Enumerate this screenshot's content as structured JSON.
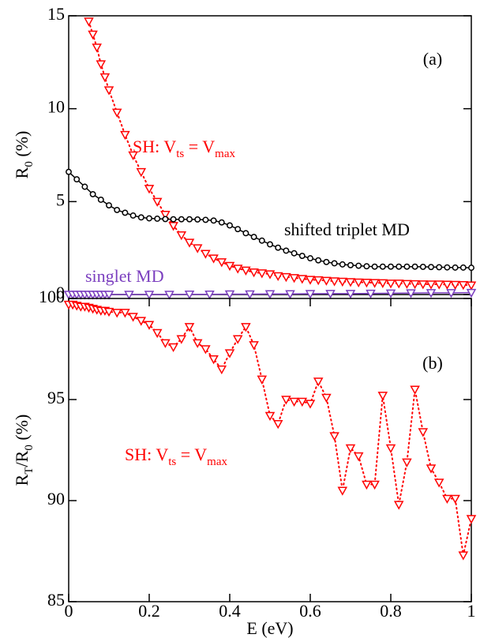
{
  "chart_data": [
    {
      "type": "line",
      "annotation": "(a)",
      "ylabel_parts": [
        "R",
        "0",
        " (%)"
      ],
      "xlim": [
        0,
        1
      ],
      "ylim": [
        0,
        15
      ],
      "yticks": [
        0,
        5,
        10,
        15
      ],
      "series": [
        {
          "name_parts": [
            "SH: V",
            "ts",
            " = V",
            "max"
          ],
          "color": "#ff0000",
          "marker": "triangle-down",
          "linestyle": "dotted",
          "x": [
            0.05,
            0.06,
            0.07,
            0.08,
            0.09,
            0.1,
            0.12,
            0.14,
            0.16,
            0.18,
            0.2,
            0.22,
            0.24,
            0.26,
            0.28,
            0.3,
            0.32,
            0.34,
            0.36,
            0.38,
            0.4,
            0.42,
            0.44,
            0.46,
            0.48,
            0.5,
            0.52,
            0.54,
            0.56,
            0.58,
            0.6,
            0.62,
            0.64,
            0.66,
            0.68,
            0.7,
            0.72,
            0.74,
            0.76,
            0.78,
            0.8,
            0.82,
            0.84,
            0.86,
            0.88,
            0.9,
            0.92,
            0.94,
            0.96,
            0.98,
            1
          ],
          "values": [
            14.7,
            14.0,
            13.3,
            12.4,
            11.7,
            11.0,
            9.8,
            8.6,
            7.5,
            6.6,
            5.7,
            5.0,
            4.3,
            3.7,
            3.2,
            2.8,
            2.5,
            2.2,
            1.95,
            1.75,
            1.55,
            1.4,
            1.3,
            1.2,
            1.15,
            1.1,
            1.0,
            0.95,
            0.9,
            0.85,
            0.8,
            0.78,
            0.75,
            0.72,
            0.7,
            0.68,
            0.66,
            0.65,
            0.63,
            0.62,
            0.6,
            0.6,
            0.58,
            0.57,
            0.56,
            0.55,
            0.55,
            0.54,
            0.53,
            0.52,
            0.5
          ]
        },
        {
          "name": "shifted triplet MD",
          "color": "#000000",
          "marker": "circle",
          "linestyle": "solid",
          "x": [
            0,
            0.02,
            0.04,
            0.06,
            0.08,
            0.1,
            0.12,
            0.14,
            0.16,
            0.18,
            0.2,
            0.22,
            0.24,
            0.26,
            0.28,
            0.3,
            0.32,
            0.34,
            0.36,
            0.38,
            0.4,
            0.42,
            0.44,
            0.46,
            0.48,
            0.5,
            0.52,
            0.54,
            0.56,
            0.58,
            0.6,
            0.62,
            0.64,
            0.66,
            0.68,
            0.7,
            0.72,
            0.74,
            0.76,
            0.78,
            0.8,
            0.82,
            0.84,
            0.86,
            0.88,
            0.9,
            0.92,
            0.94,
            0.96,
            0.98,
            1
          ],
          "values": [
            6.6,
            6.2,
            5.8,
            5.4,
            5.1,
            4.8,
            4.55,
            4.4,
            4.25,
            4.15,
            4.1,
            4.08,
            4.06,
            4.05,
            4.05,
            4.05,
            4.04,
            4.02,
            3.98,
            3.88,
            3.72,
            3.52,
            3.3,
            3.1,
            2.9,
            2.7,
            2.52,
            2.36,
            2.22,
            2.08,
            1.95,
            1.84,
            1.75,
            1.68,
            1.62,
            1.58,
            1.55,
            1.52,
            1.5,
            1.5,
            1.5,
            1.5,
            1.5,
            1.5,
            1.49,
            1.48,
            1.47,
            1.46,
            1.45,
            1.45,
            1.44
          ]
        },
        {
          "name": "singlet MD",
          "color": "#7b3fbf",
          "marker": "triangle-down",
          "linestyle": "solid",
          "x": [
            0,
            0.01,
            0.02,
            0.03,
            0.04,
            0.05,
            0.06,
            0.07,
            0.08,
            0.09,
            0.1,
            0.15,
            0.2,
            0.25,
            0.3,
            0.35,
            0.4,
            0.45,
            0.5,
            0.55,
            0.6,
            0.65,
            0.7,
            0.75,
            0.8,
            0.85,
            0.9,
            0.95,
            1
          ],
          "values": [
            0,
            0,
            0,
            0,
            0,
            0,
            0,
            0,
            0,
            0,
            0,
            0,
            0,
            0,
            0.01,
            0.01,
            0.02,
            0.02,
            0.03,
            0.03,
            0.04,
            0.05,
            0.05,
            0.06,
            0.07,
            0.08,
            0.09,
            0.09,
            0.1
          ]
        }
      ]
    },
    {
      "type": "line",
      "annotation": "(b)",
      "ylabel_parts": [
        "R",
        "T",
        "/R",
        "0",
        " (%)"
      ],
      "xlabel": "E (eV)",
      "xlim": [
        0,
        1
      ],
      "xticks": [
        0,
        0.2,
        0.4,
        0.6,
        0.8,
        1
      ],
      "ylim": [
        85,
        100
      ],
      "yticks": [
        85,
        90,
        95,
        100
      ],
      "series": [
        {
          "name_parts": [
            "SH: V",
            "ts",
            " = V",
            "max"
          ],
          "color": "#ff0000",
          "marker": "triangle-down",
          "linestyle": "dotted",
          "x": [
            0,
            0.01,
            0.02,
            0.03,
            0.04,
            0.05,
            0.06,
            0.07,
            0.08,
            0.09,
            0.1,
            0.12,
            0.14,
            0.16,
            0.18,
            0.2,
            0.22,
            0.24,
            0.26,
            0.28,
            0.3,
            0.32,
            0.34,
            0.36,
            0.38,
            0.4,
            0.42,
            0.44,
            0.46,
            0.48,
            0.5,
            0.52,
            0.54,
            0.56,
            0.58,
            0.6,
            0.62,
            0.64,
            0.66,
            0.68,
            0.7,
            0.72,
            0.74,
            0.76,
            0.78,
            0.8,
            0.82,
            0.84,
            0.86,
            0.88,
            0.9,
            0.92,
            0.94,
            0.96,
            0.98,
            1
          ],
          "values": [
            99.7,
            99.7,
            99.65,
            99.6,
            99.6,
            99.55,
            99.5,
            99.45,
            99.4,
            99.4,
            99.35,
            99.3,
            99.3,
            99.1,
            98.9,
            98.7,
            98.3,
            97.8,
            97.6,
            98.0,
            98.6,
            97.8,
            97.5,
            97.0,
            96.5,
            97.3,
            98.0,
            98.6,
            97.7,
            96.0,
            94.2,
            93.8,
            95.0,
            94.9,
            94.9,
            94.8,
            95.9,
            95.1,
            93.2,
            90.5,
            92.6,
            92.2,
            90.8,
            90.8,
            95.2,
            92.6,
            89.8,
            91.9,
            95.5,
            93.4,
            91.6,
            90.9,
            90.1,
            90.1,
            87.3,
            89.1
          ]
        }
      ]
    }
  ]
}
